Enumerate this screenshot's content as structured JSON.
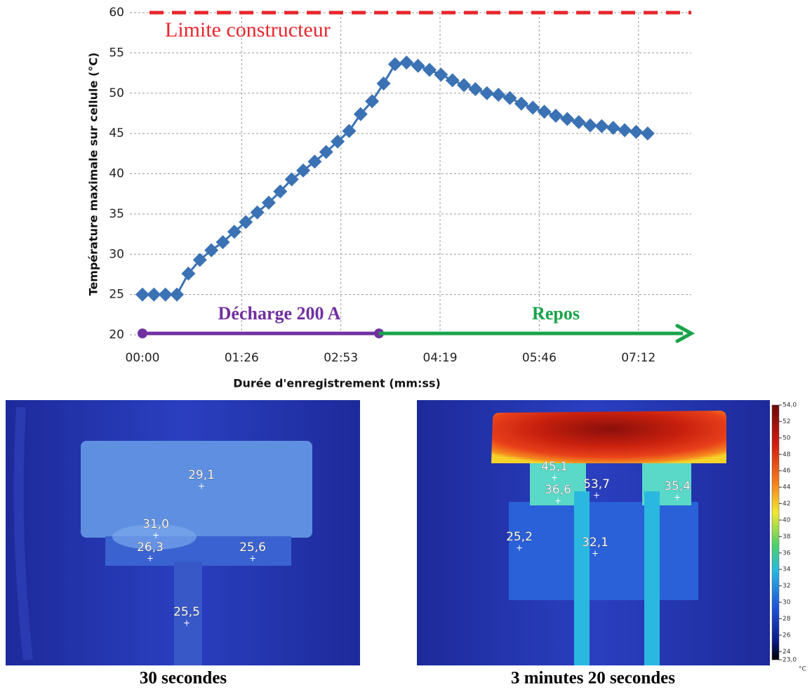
{
  "chart_data": {
    "type": "line",
    "xlabel": "Durée d'enregistrement (mm:ss)",
    "ylabel": "Température maximale sur cellule (°C)",
    "x": [
      0,
      10,
      20,
      30,
      40,
      50,
      60,
      70,
      80,
      90,
      100,
      110,
      120,
      130,
      140,
      150,
      160,
      170,
      180,
      190,
      200,
      210,
      220,
      230,
      240,
      250,
      260,
      270,
      280,
      290,
      300,
      310,
      320,
      330,
      340,
      350,
      360,
      370,
      380,
      390,
      400,
      410,
      420,
      430,
      440
    ],
    "values": [
      25,
      25,
      25,
      25,
      27.6,
      29.3,
      30.5,
      31.5,
      32.8,
      34.0,
      35.2,
      36.4,
      37.8,
      39.3,
      40.4,
      41.5,
      42.7,
      44.0,
      45.3,
      47.4,
      49.0,
      51.2,
      53.6,
      53.8,
      53.4,
      52.9,
      52.3,
      51.6,
      51.0,
      50.5,
      50.0,
      49.8,
      49.4,
      48.7,
      48.2,
      47.7,
      47.2,
      46.8,
      46.4,
      46.0,
      45.9,
      45.7,
      45.4,
      45.2,
      45.0
    ],
    "color": "#3b72b4",
    "xlim": [
      -11,
      478
    ],
    "ylim": [
      20,
      60
    ],
    "xticks": [
      {
        "value": 0,
        "label": "00:00"
      },
      {
        "value": 86.4,
        "label": "01:26"
      },
      {
        "value": 172.8,
        "label": "02:53"
      },
      {
        "value": 259.2,
        "label": "04:19"
      },
      {
        "value": 345.6,
        "label": "05:46"
      },
      {
        "value": 432,
        "label": "07:12"
      }
    ],
    "yticks": [
      20,
      25,
      30,
      35,
      40,
      45,
      50,
      55,
      60
    ],
    "grid": true,
    "limit": {
      "value": 60,
      "label": "Limite constructeur",
      "color": "#e8262c"
    },
    "phases": [
      {
        "label": "Décharge 200 A",
        "x": [
          0,
          206
        ],
        "color": "#7030a0"
      },
      {
        "label": "Repos",
        "x": [
          206,
          478
        ],
        "color": "#1aa34a"
      }
    ]
  },
  "thermal_images": [
    {
      "caption": "30 secondes",
      "spots": [
        "29,1",
        "31,0",
        "26,3",
        "25,6",
        "25,5"
      ]
    },
    {
      "caption": "3 minutes 20 secondes",
      "spots": [
        "53,7",
        "45,1",
        "36,6",
        "35,4",
        "25,2",
        "32,1"
      ]
    }
  ],
  "colorbar": {
    "ticks": [
      {
        "value": 54,
        "label": "54,0"
      },
      52,
      50,
      48,
      46,
      44,
      42,
      40,
      38,
      36,
      34,
      32,
      30,
      28,
      26,
      24,
      {
        "value": 23,
        "label": "23,0"
      }
    ],
    "unit": "°C"
  }
}
